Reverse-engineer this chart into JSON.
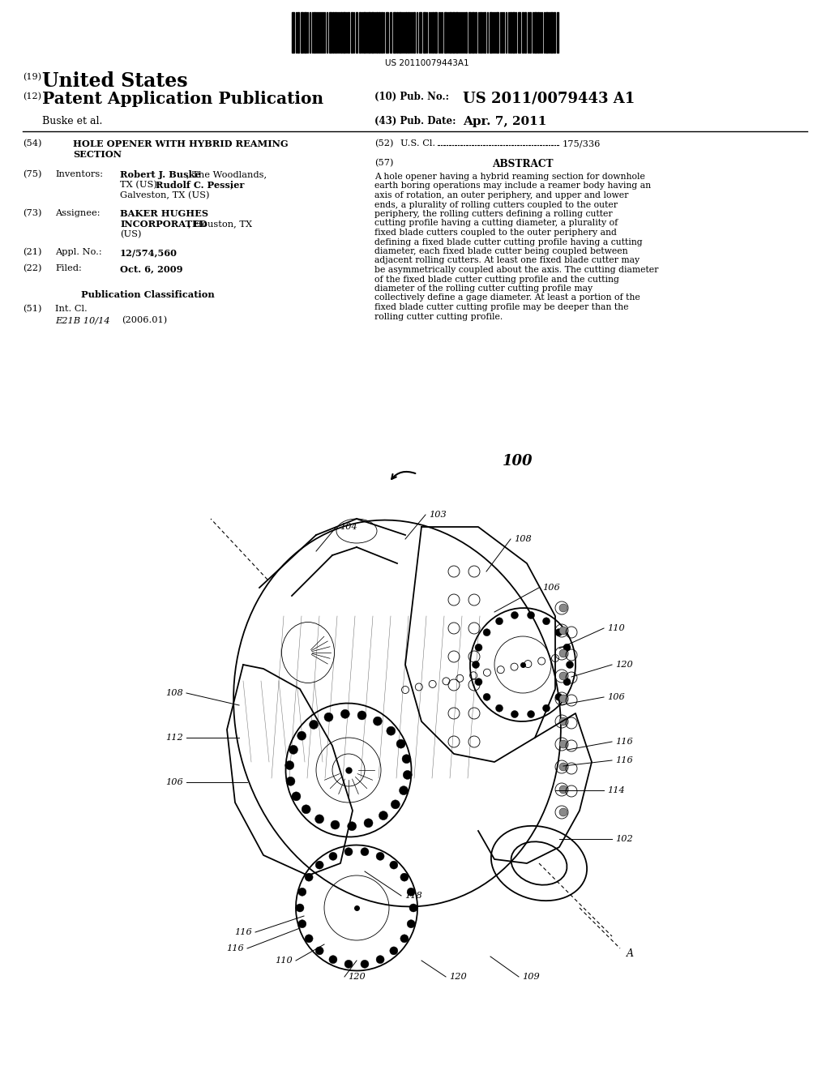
{
  "bg_color": "#ffffff",
  "page_width": 10.24,
  "page_height": 13.2,
  "barcode_text": "US 20110079443A1",
  "pub_no_label": "(10) Pub. No.: ",
  "pub_no": "US 2011/0079443 A1",
  "pub_date_label": "(43) Pub. Date:",
  "pub_date": "Apr. 7, 2011",
  "country_num": "(19)",
  "country": "United States",
  "doc_num": "(12)",
  "pub_type": "Patent Application Publication",
  "authors": "Buske et al.",
  "title_num": "(54)",
  "title_line1": "HOLE OPENER WITH HYBRID REAMING",
  "title_line2": "SECTION",
  "inv_num": "(75)",
  "inv_label": "Inventors:",
  "inv_line1_bold": "Robert J. Buske",
  "inv_line1_rest": ", The Woodlands,",
  "inv_line2_pre": "TX (US); ",
  "inv_line2_bold": "Rudolf C. Pessier",
  "inv_line2_end": ",",
  "inv_line3": "Galveston, TX (US)",
  "asgn_num": "(73)",
  "asgn_label": "Assignee:",
  "asgn_line1_bold": "BAKER HUGHES",
  "asgn_line2_bold": "INCORPORATED",
  "asgn_line2_rest": ", Houston, TX",
  "asgn_line3": "(US)",
  "appl_num": "(21)",
  "appl_label": "Appl. No.:",
  "appl_no": "12/574,560",
  "filed_num": "(22)",
  "filed_label": "Filed:",
  "filed_date": "Oct. 6, 2009",
  "pub_class": "Publication Classification",
  "int_num": "(51)",
  "int_label": "Int. Cl.",
  "int_class": "E21B 10/14",
  "int_year": "(2006.01)",
  "us_num": "(52)",
  "us_label": "U.S. Cl.",
  "us_val": "175/336",
  "abs_num": "(57)",
  "abs_title": "ABSTRACT",
  "abstract": "A hole opener having a hybrid reaming section for downhole earth boring operations may include a reamer body having an axis of rotation, an outer periphery, and upper and lower ends, a plurality of rolling cutters coupled to the outer periphery, the rolling cutters defining a rolling cutter cutting profile having a cutting diameter, a plurality of fixed blade cutters coupled to the outer periphery and defining a fixed blade cutter cutting profile having a cutting diameter, each fixed blade cutter being coupled between adjacent rolling cutters. At least one fixed blade cutter may be asymmetrically coupled about the axis. The cutting diameter of the fixed blade cutter cutting profile and the cutting diameter of the rolling cutter cutting profile may collectively define a gage diameter. At least a portion of the fixed blade cutter cutting profile may be deeper than the rolling cutter cutting profile."
}
